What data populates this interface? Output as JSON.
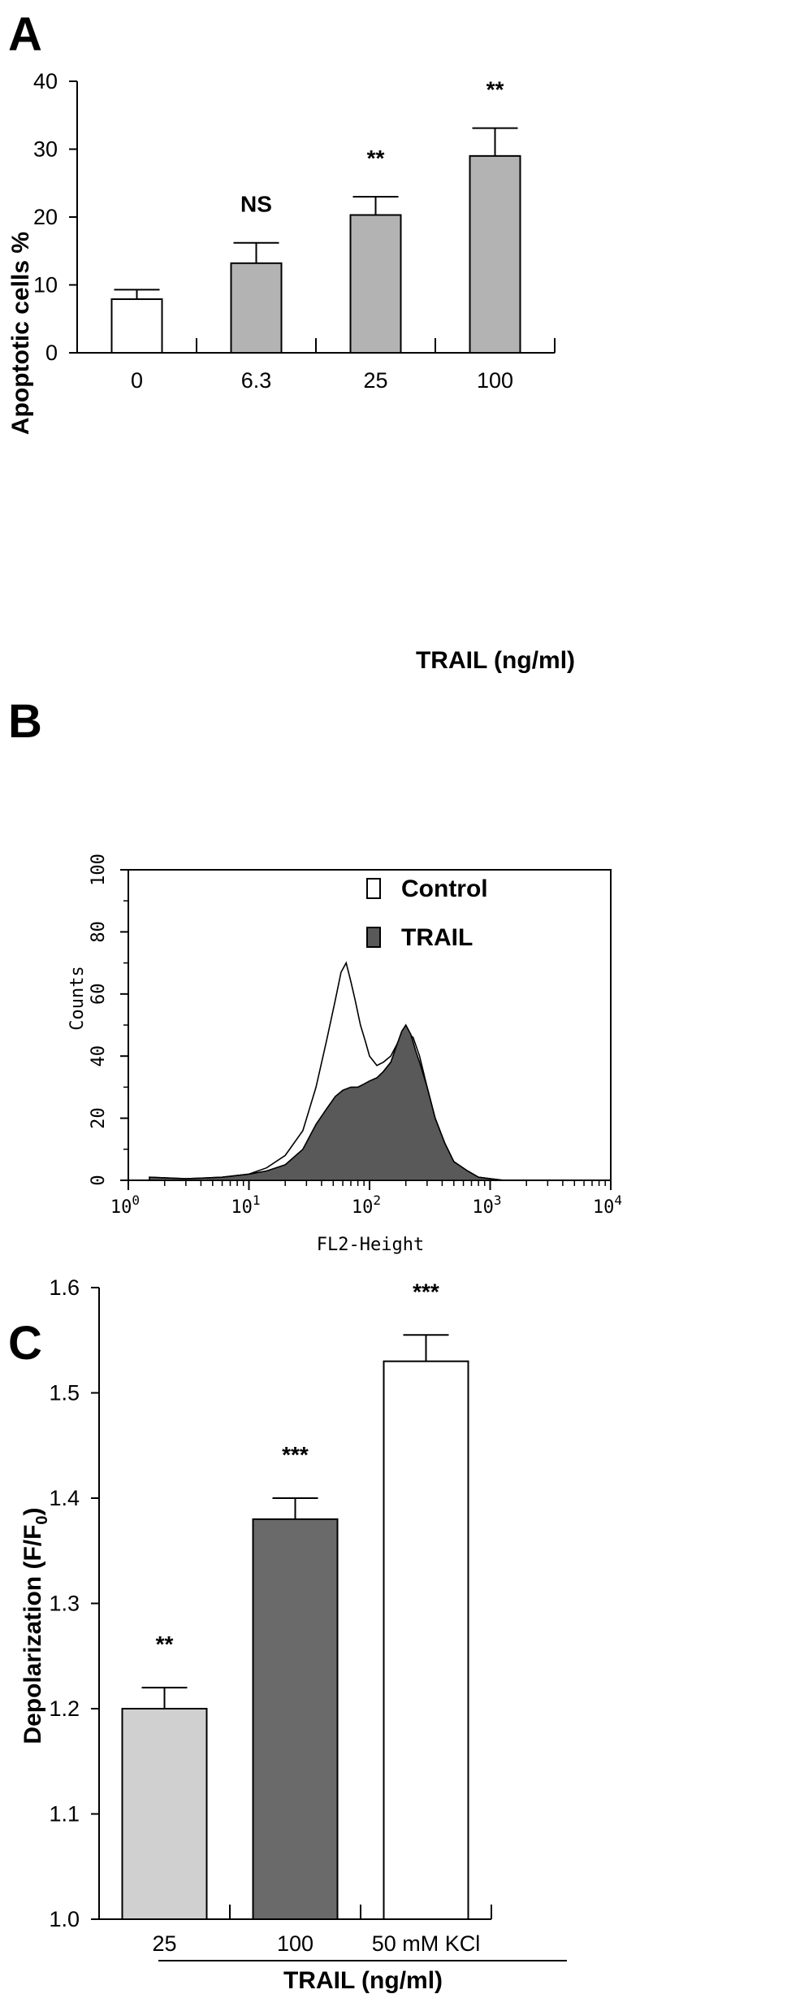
{
  "chart_data": [
    {
      "type": "bar",
      "panel": "A",
      "categories": [
        "0",
        "6.3",
        "25",
        "100"
      ],
      "values": [
        7.9,
        13.2,
        20.3,
        29.0
      ],
      "errors": [
        1.4,
        3.0,
        2.7,
        4.1
      ],
      "significance": [
        "",
        "NS",
        "**",
        "**"
      ],
      "colors": [
        "#ffffff",
        "#b3b3b3",
        "#b3b3b3",
        "#b3b3b3"
      ],
      "xlabel": "TRAIL (ng/ml)",
      "ylabel": "Apoptotic cells %",
      "ylim": [
        0,
        40
      ],
      "yticks": [
        "0",
        "10",
        "20",
        "30",
        "40"
      ],
      "grid": false
    },
    {
      "type": "area",
      "panel": "B",
      "xscale": "log",
      "xlabel": "FL2-Height",
      "ylabel": "Counts",
      "xlim": [
        1,
        10000
      ],
      "ylim": [
        0,
        100
      ],
      "xticks": [
        "10",
        "10",
        "10",
        "10",
        "10"
      ],
      "xtick_exponents": [
        "0",
        "1",
        "2",
        "3",
        "4"
      ],
      "yticks": [
        "0",
        "20",
        "40",
        "60",
        "80",
        "100"
      ],
      "legend": {
        "position": "top-right",
        "entries": [
          "Control",
          "TRAIL"
        ]
      },
      "series": [
        {
          "name": "Control",
          "fill": "#ffffff",
          "x": [
            1.5,
            3,
            6,
            10,
            14,
            20,
            28,
            36,
            44,
            52,
            58,
            64,
            70,
            76,
            84,
            92,
            100,
            115,
            130,
            150,
            170,
            200,
            230,
            260,
            300,
            350,
            420,
            500,
            650,
            800,
            1000,
            1300
          ],
          "y": [
            1,
            0.5,
            1,
            2,
            4,
            8,
            16,
            30,
            45,
            58,
            67,
            70,
            64,
            58,
            50,
            45,
            40,
            37,
            38,
            40,
            44,
            48,
            46,
            40,
            30,
            20,
            12,
            6,
            3,
            1,
            0.5,
            0
          ]
        },
        {
          "name": "TRAIL",
          "fill": "#595959",
          "x": [
            1.5,
            3,
            6,
            10,
            14,
            20,
            28,
            36,
            44,
            52,
            60,
            70,
            80,
            90,
            100,
            115,
            130,
            150,
            170,
            185,
            200,
            220,
            240,
            260,
            300,
            350,
            420,
            500,
            650,
            800,
            1000,
            1300
          ],
          "y": [
            1,
            0.5,
            1,
            2,
            3,
            5,
            10,
            18,
            23,
            27,
            29,
            30,
            30,
            31,
            32,
            33,
            35,
            38,
            44,
            48,
            50,
            47,
            42,
            38,
            30,
            20,
            12,
            6,
            3,
            1,
            0.5,
            0
          ]
        }
      ]
    },
    {
      "type": "bar",
      "panel": "C",
      "categories": [
        "25",
        "100",
        "50 mM KCl"
      ],
      "values": [
        1.2,
        1.38,
        1.53
      ],
      "errors": [
        0.02,
        0.02,
        0.025
      ],
      "significance": [
        "**",
        "***",
        "***"
      ],
      "colors": [
        "#d0d0d0",
        "#6a6a6a",
        "#ffffff"
      ],
      "xlabel": "TRAIL (ng/ml)",
      "ylabel": "Depolarization (F/F",
      "ylabel_sub": "0",
      "ylabel_end": ")",
      "ylim": [
        1.0,
        1.6
      ],
      "yticks": [
        "1.0",
        "1.1",
        "1.2",
        "1.3",
        "1.4",
        "1.5",
        "1.6"
      ],
      "grid": false
    }
  ],
  "panel_labels": [
    "A",
    "B",
    "C"
  ]
}
